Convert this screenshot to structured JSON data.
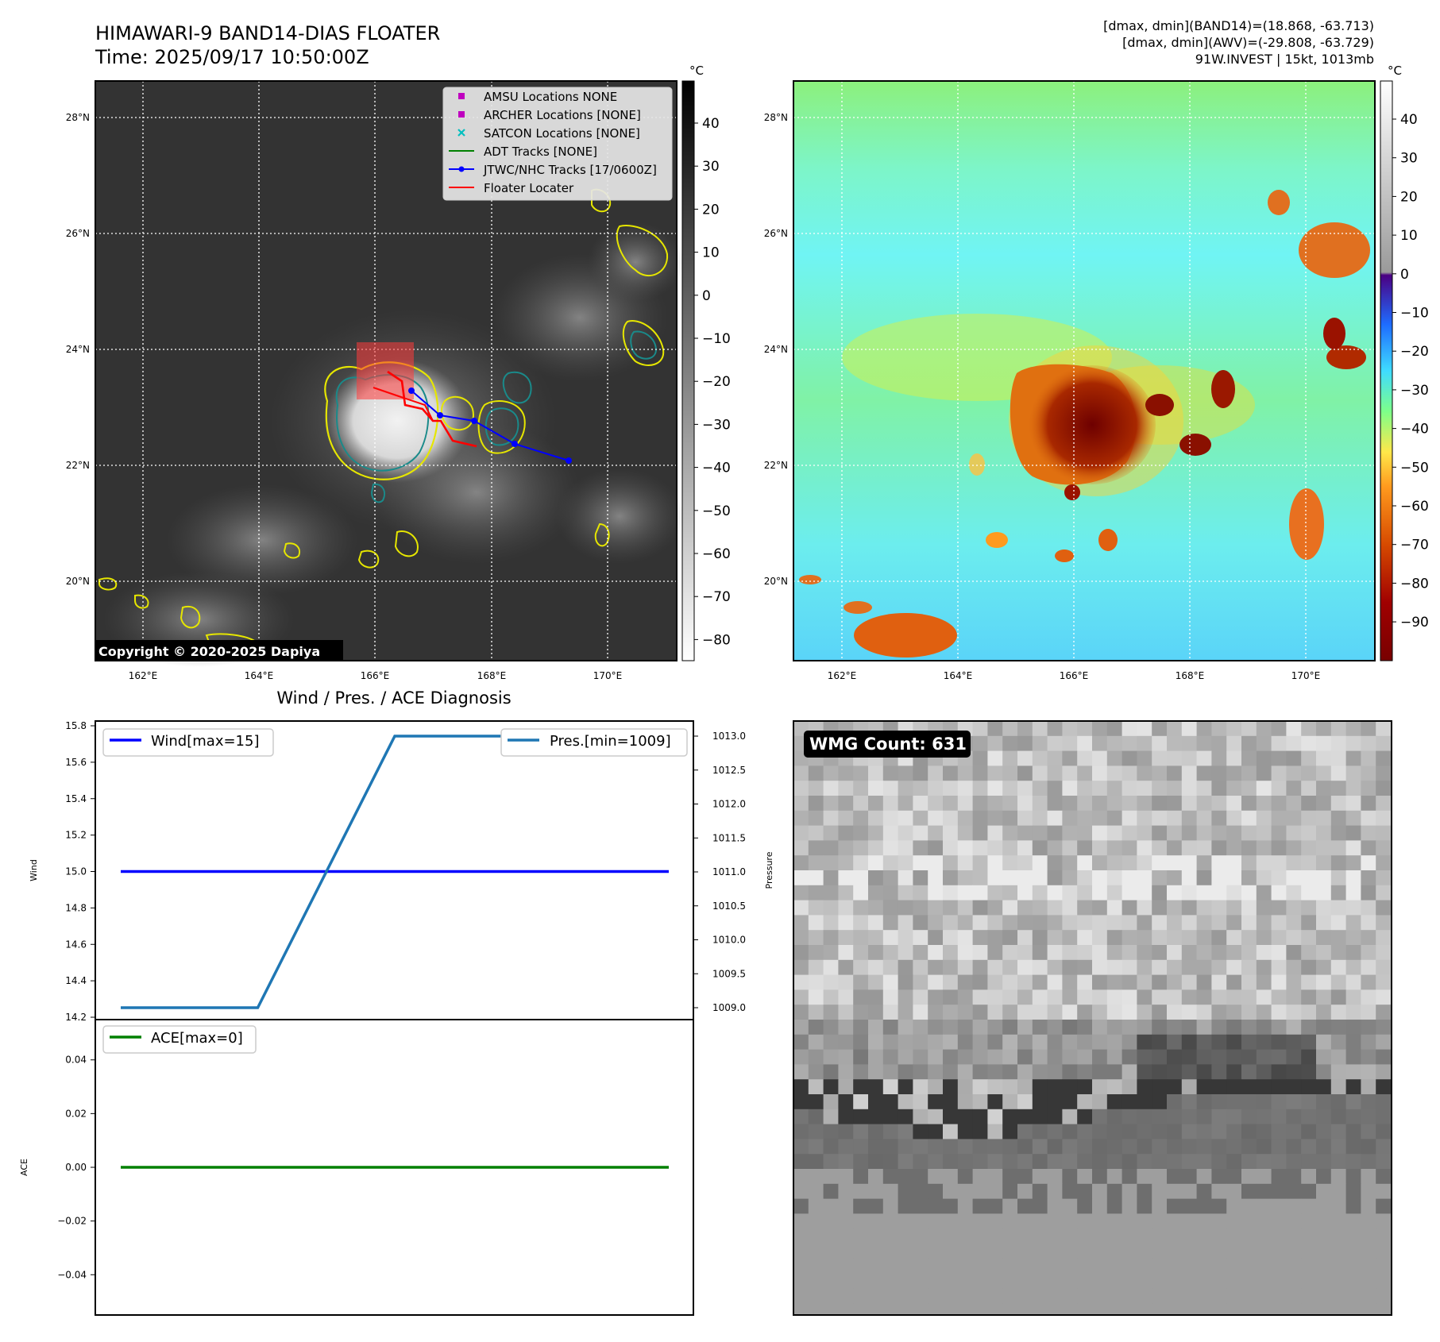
{
  "header": {
    "title": "HIMAWARI-9 BAND14-DIAS FLOATER",
    "time": "Time: 2025/09/17 10:50:00Z",
    "info_lines": [
      "[dmax, dmin](BAND14)=(18.868, -63.713)",
      "[dmax, dmin](AWV)=(-29.808, -63.729)",
      "91W.INVEST | 15kt, 1013mb"
    ]
  },
  "copyright": "Copyright © 2020-2025 Dapiya",
  "map": {
    "lon_labels": [
      "162°E",
      "164°E",
      "166°E",
      "168°E",
      "170°E"
    ],
    "lat_labels": [
      "28°N",
      "26°N",
      "24°N",
      "22°N",
      "20°N"
    ]
  },
  "colorbar_ir": {
    "unit": "°C",
    "ticks": [
      "40",
      "30",
      "20",
      "10",
      "0",
      "−10",
      "−20",
      "−30",
      "−40",
      "−50",
      "−60",
      "−70",
      "−80"
    ]
  },
  "colorbar_wv": {
    "unit": "°C",
    "ticks": [
      "40",
      "30",
      "20",
      "10",
      "0",
      "−10",
      "−20",
      "−30",
      "−40",
      "−50",
      "−60",
      "−70",
      "−80",
      "−90"
    ]
  },
  "legend": {
    "items": [
      {
        "label": "AMSU Locations NONE",
        "color": "#bf00bf",
        "marker": "square"
      },
      {
        "label": "ARCHER Locations [NONE]",
        "color": "#bf00bf",
        "marker": "square"
      },
      {
        "label": "SATCON Locations [NONE]",
        "color": "#00bfbf",
        "marker": "x"
      },
      {
        "label": "ADT Tracks [NONE]",
        "color": "#008000",
        "marker": "line"
      },
      {
        "label": "JTWC/NHC Tracks [17/0600Z]",
        "color": "#0000ff",
        "marker": "line-dot"
      },
      {
        "label": "Floater Locater",
        "color": "#ff0000",
        "marker": "line"
      }
    ]
  },
  "diagnosis": {
    "title": "Wind / Pres. / ACE Diagnosis",
    "wind_axis_label": "Wind",
    "pressure_axis_label": "Pressure",
    "ace_axis_label": "ACE",
    "wind_legend": "Wind[max=15]",
    "pressure_legend": "Pres.[min=1009]",
    "ace_legend": "ACE[max=0]",
    "wind_ticks": [
      "15.8",
      "15.6",
      "15.4",
      "15.2",
      "15.0",
      "14.8",
      "14.6",
      "14.4",
      "14.2"
    ],
    "pressure_ticks": [
      "1013.0",
      "1012.5",
      "1012.0",
      "1011.5",
      "1011.0",
      "1010.5",
      "1010.0",
      "1009.5",
      "1009.0"
    ],
    "ace_ticks": [
      "0.04",
      "0.02",
      "0.00",
      "−0.02",
      "−0.04"
    ]
  },
  "wmg": {
    "label": "WMG Count: 631"
  },
  "chart_data": [
    {
      "type": "line",
      "title": "Wind / Pres. / ACE Diagnosis",
      "xlabel": "",
      "ylabel": "Wind",
      "x": [
        0,
        1,
        2,
        3,
        4
      ],
      "series": [
        {
          "name": "Wind[max=15]",
          "axis": "left",
          "color": "#0000ff",
          "values": [
            15,
            15,
            15,
            15,
            15
          ]
        },
        {
          "name": "Pres.[min=1009]",
          "axis": "right",
          "color": "#1f77b4",
          "values": [
            1009,
            1009,
            1013,
            1013,
            1013
          ]
        }
      ],
      "ylim_left": [
        14.2,
        15.8
      ],
      "ylim_right": [
        1008.95,
        1013.05
      ],
      "y2label": "Pressure",
      "legend_left": "top-left",
      "legend_right": "top-right"
    },
    {
      "type": "line",
      "ylabel": "ACE",
      "x": [
        0,
        1,
        2,
        3,
        4
      ],
      "series": [
        {
          "name": "ACE[max=0]",
          "color": "#008000",
          "values": [
            0,
            0,
            0,
            0,
            0
          ]
        }
      ],
      "ylim": [
        -0.055,
        0.055
      ],
      "legend": "top-left"
    }
  ]
}
